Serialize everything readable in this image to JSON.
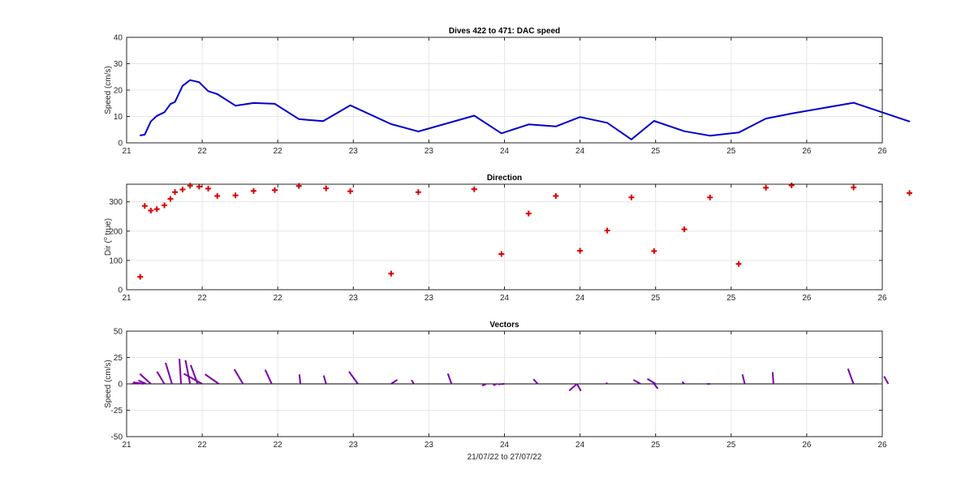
{
  "chart_data": [
    {
      "type": "line",
      "title": "Dives 422 to 471: DAC speed",
      "xlabel": "",
      "ylabel": "Speed (cm/s)",
      "xlim": [
        21,
        26
      ],
      "ylim": [
        0,
        40
      ],
      "xticks": [
        21,
        21.5,
        22,
        22.5,
        23,
        23.5,
        24,
        24.5,
        25,
        25.5,
        26
      ],
      "xtick_labels": [
        "21",
        "22",
        "22",
        "23",
        "23",
        "24",
        "24",
        "25",
        "25",
        "26",
        "26"
      ],
      "yticks": [
        0,
        10,
        20,
        30,
        40
      ],
      "grid": true,
      "color": "#0000cc",
      "series": [
        {
          "x": [
            21.09,
            21.12,
            21.16,
            21.2,
            21.25,
            21.29,
            21.32,
            21.37,
            21.42,
            21.48,
            21.54,
            21.6,
            21.72,
            21.84,
            21.98,
            22.14,
            22.3,
            22.48,
            22.75,
            22.93,
            23.3,
            23.48,
            23.66,
            23.84,
            24.0,
            24.18,
            24.34,
            24.49,
            24.69,
            24.86,
            25.05,
            25.23,
            25.4,
            25.81,
            26.18
          ],
          "y": [
            2.8,
            3.1,
            8.1,
            10.2,
            11.6,
            14.7,
            15.5,
            21.6,
            23.8,
            23.0,
            19.6,
            18.5,
            14.1,
            15.1,
            14.8,
            9.0,
            8.2,
            14.2,
            7.1,
            4.3,
            10.3,
            3.6,
            7.0,
            6.2,
            9.8,
            7.6,
            1.3,
            8.3,
            4.4,
            2.7,
            3.9,
            9.2,
            11.1,
            15.2,
            8.1
          ]
        }
      ]
    },
    {
      "type": "scatter",
      "title": "Direction",
      "xlabel": "",
      "ylabel": "Dir (° true)",
      "ylabel_parts": [
        "Dir (",
        "o",
        " true)"
      ],
      "xlim": [
        21,
        26
      ],
      "ylim": [
        0,
        360
      ],
      "xticks": [
        21,
        21.5,
        22,
        22.5,
        23,
        23.5,
        24,
        24.5,
        25,
        25.5,
        26
      ],
      "xtick_labels": [
        "21",
        "22",
        "22",
        "23",
        "23",
        "24",
        "24",
        "25",
        "25",
        "26",
        "26"
      ],
      "yticks": [
        0,
        100,
        200,
        300
      ],
      "grid": true,
      "color": "#dd0000",
      "series": [
        {
          "x": [
            21.09,
            21.12,
            21.16,
            21.2,
            21.25,
            21.29,
            21.32,
            21.37,
            21.42,
            21.48,
            21.54,
            21.6,
            21.72,
            21.84,
            21.98,
            22.14,
            22.32,
            22.48,
            22.75,
            22.93,
            23.3,
            23.48,
            23.66,
            23.84,
            24.0,
            24.18,
            24.34,
            24.49,
            24.69,
            24.86,
            25.05,
            25.23,
            25.4,
            25.81,
            26.18
          ],
          "y": [
            44,
            286,
            270,
            275,
            288,
            310,
            333,
            342,
            355,
            352,
            345,
            320,
            322,
            337,
            340,
            354,
            346,
            336,
            55,
            333,
            343,
            122,
            260,
            320,
            133,
            202,
            315,
            132,
            206,
            315,
            88,
            348,
            356,
            349,
            330
          ]
        }
      ]
    },
    {
      "type": "quiver",
      "title": "Vectors",
      "xlabel": "21/07/22 to 27/07/22",
      "ylabel": "Speed (cm/s)",
      "xlim": [
        21,
        26
      ],
      "ylim": [
        -50,
        50
      ],
      "xticks": [
        21,
        21.5,
        22,
        22.5,
        23,
        23.5,
        24,
        24.5,
        25,
        25.5,
        26
      ],
      "xtick_labels": [
        "21",
        "22",
        "22",
        "23",
        "23",
        "24",
        "24",
        "25",
        "25",
        "26",
        "26"
      ],
      "yticks": [
        -50,
        -25,
        0,
        25,
        50
      ],
      "ytick_labels": [
        "-50",
        "-25",
        "0",
        "25",
        "50"
      ],
      "grid": true,
      "color": "#7a00a8",
      "vectors": [
        {
          "x": 21.04,
          "u": 2.1,
          "v": 2.0
        },
        {
          "x": 21.07,
          "u": -2.7,
          "v": 1.2
        },
        {
          "x": 21.11,
          "u": -7.5,
          "v": 1.3
        },
        {
          "x": 21.13,
          "u": -7.5,
          "v": 3.3
        },
        {
          "x": 21.16,
          "u": -10.4,
          "v": 9.5
        },
        {
          "x": 21.25,
          "u": -7.0,
          "v": 11.6
        },
        {
          "x": 21.3,
          "u": -6.0,
          "v": 20.0
        },
        {
          "x": 21.36,
          "u": -1.5,
          "v": 23.8
        },
        {
          "x": 21.42,
          "u": -4.4,
          "v": 22.5
        },
        {
          "x": 21.47,
          "u": -6.6,
          "v": 17.9
        },
        {
          "x": 21.5,
          "u": -17.4,
          "v": 9.6
        },
        {
          "x": 21.61,
          "u": -13.0,
          "v": 9.1
        },
        {
          "x": 21.77,
          "u": -8.2,
          "v": 13.8
        },
        {
          "x": 21.96,
          "u": -6.2,
          "v": 13.4
        },
        {
          "x": 22.15,
          "u": -1.0,
          "v": 9.0
        },
        {
          "x": 22.32,
          "u": -2.3,
          "v": 8.0
        },
        {
          "x": 22.53,
          "u": -8.4,
          "v": 11.7
        },
        {
          "x": 22.75,
          "u": 5.9,
          "v": 3.9
        },
        {
          "x": 22.9,
          "u": -2.1,
          "v": 3.7
        },
        {
          "x": 23.15,
          "u": -3.5,
          "v": 9.7
        },
        {
          "x": 23.38,
          "u": -4.0,
          "v": -1.8
        },
        {
          "x": 23.45,
          "u": -3.5,
          "v": -1.3
        },
        {
          "x": 23.5,
          "u": -6.2,
          "v": -0.4
        },
        {
          "x": 23.72,
          "u": -4.0,
          "v": 4.5
        },
        {
          "x": 23.98,
          "u": -7.4,
          "v": -6.4
        },
        {
          "x": 23.98,
          "u": 3.7,
          "v": -6.7
        },
        {
          "x": 24.18,
          "u": -1.1,
          "v": 1.1
        },
        {
          "x": 24.4,
          "u": -6.7,
          "v": 3.8
        },
        {
          "x": 24.5,
          "u": -7.8,
          "v": 4.8
        },
        {
          "x": 24.49,
          "u": 3.6,
          "v": -4.6
        },
        {
          "x": 24.69,
          "u": -2.0,
          "v": 2.0
        },
        {
          "x": 24.86,
          "u": -2.7,
          "v": -0.1
        },
        {
          "x": 25.09,
          "u": -2.2,
          "v": 9.0
        },
        {
          "x": 25.28,
          "u": -0.8,
          "v": 11.1
        },
        {
          "x": 25.81,
          "u": -5.3,
          "v": 14.3
        },
        {
          "x": 26.04,
          "u": -4.0,
          "v": 7.1
        }
      ]
    }
  ]
}
